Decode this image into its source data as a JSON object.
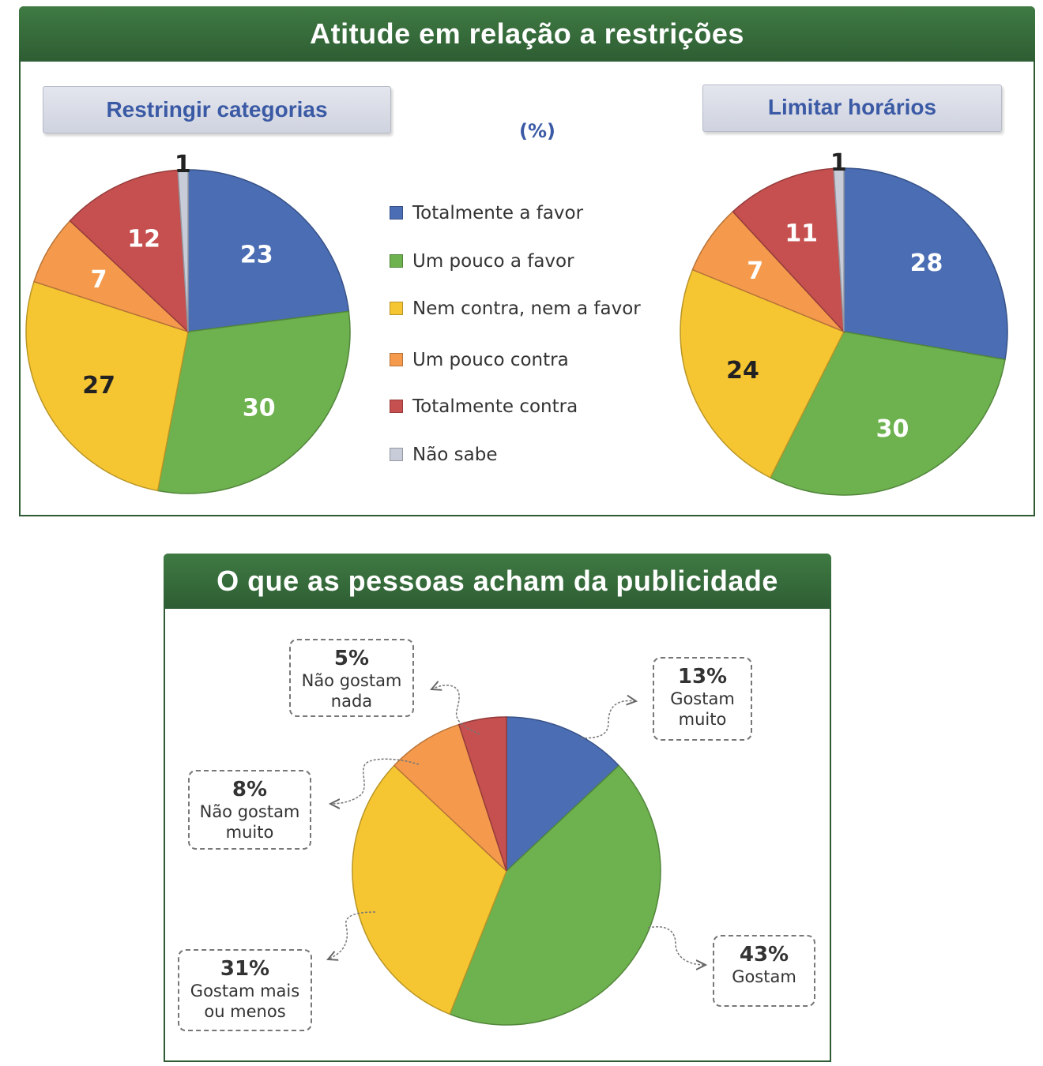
{
  "top_panel": {
    "title": "Atitude em relação a restrições",
    "unit_label": "(%)",
    "left_subtitle": "Restringir categorias",
    "right_subtitle": "Limitar horários"
  },
  "bottom_panel": {
    "title": "O que as pessoas acham da publicidade",
    "callouts": [
      {
        "pct": "13%",
        "text": "Gostam\nmuito"
      },
      {
        "pct": "43%",
        "text": "Gostam"
      },
      {
        "pct": "31%",
        "text": "Gostam  mais\nou menos"
      },
      {
        "pct": "8%",
        "text": "Não gostam\nmuito"
      },
      {
        "pct": "5%",
        "text": "Não gostam\nnada"
      }
    ]
  },
  "legend": [
    {
      "label": "Totalmente a favor",
      "color": "#4a6db4"
    },
    {
      "label": "Um pouco a favor",
      "color": "#6db24e"
    },
    {
      "label": "Nem contra, nem a favor",
      "color": "#f6c632"
    },
    {
      "label": "Um pouco contra",
      "color": "#f59a4c"
    },
    {
      "label": "Totalmente contra",
      "color": "#c6504f"
    },
    {
      "label": "Não sabe",
      "color": "#c8ccd8"
    }
  ],
  "chart_data": [
    {
      "type": "pie",
      "title": "Restringir categorias",
      "unit": "%",
      "categories": [
        "Totalmente a favor",
        "Um pouco a favor",
        "Nem contra, nem a favor",
        "Um pouco contra",
        "Totalmente contra",
        "Não sabe"
      ],
      "values": [
        23,
        30,
        27,
        7,
        12,
        1
      ],
      "colors": [
        "#4a6db4",
        "#6db24e",
        "#f6c632",
        "#f59a4c",
        "#c6504f",
        "#c8ccd8"
      ]
    },
    {
      "type": "pie",
      "title": "Limitar horários",
      "unit": "%",
      "categories": [
        "Totalmente a favor",
        "Um pouco a favor",
        "Nem contra, nem a favor",
        "Um pouco contra",
        "Totalmente contra",
        "Não sabe"
      ],
      "values": [
        28,
        30,
        24,
        7,
        11,
        1
      ],
      "colors": [
        "#4a6db4",
        "#6db24e",
        "#f6c632",
        "#f59a4c",
        "#c6504f",
        "#c8ccd8"
      ]
    },
    {
      "type": "pie",
      "title": "O que as pessoas acham da publicidade",
      "unit": "%",
      "categories": [
        "Gostam muito",
        "Gostam",
        "Gostam mais ou menos",
        "Não gostam muito",
        "Não gostam nada"
      ],
      "values": [
        13,
        43,
        31,
        8,
        5
      ],
      "colors": [
        "#4a6db4",
        "#6db24e",
        "#f6c632",
        "#f59a4c",
        "#c6504f"
      ]
    }
  ]
}
